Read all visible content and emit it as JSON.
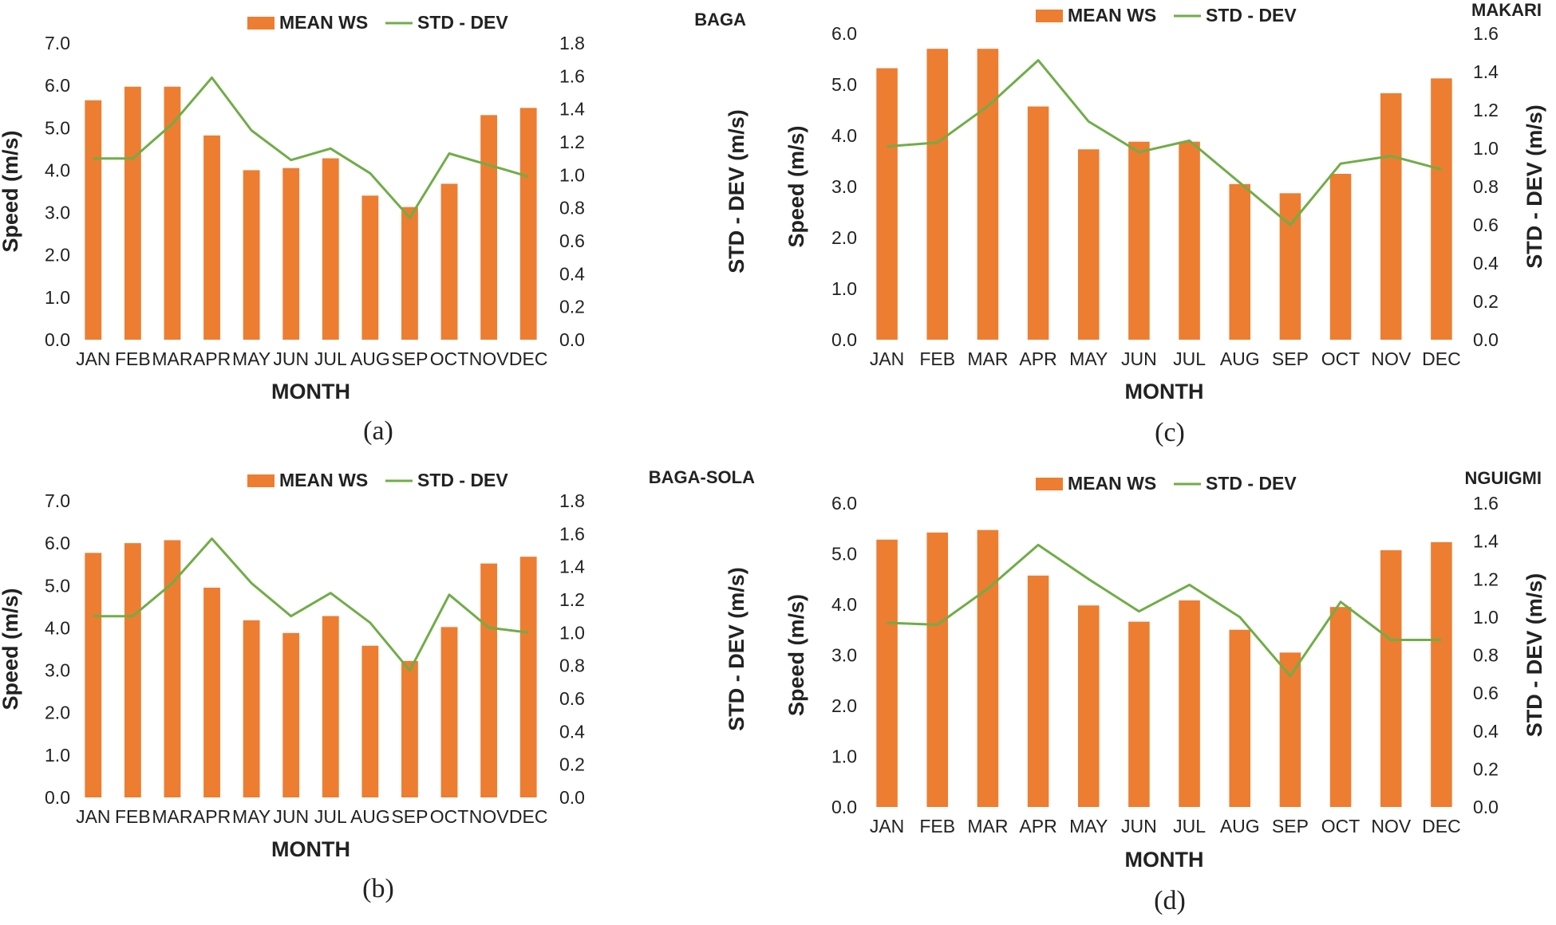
{
  "chart_data": [
    {
      "type": "bar+line",
      "panel": "(a)",
      "station": "BAGA",
      "categories": [
        "JAN",
        "FEB",
        "MAR",
        "APR",
        "MAY",
        "JUN",
        "JUL",
        "AUG",
        "SEP",
        "OCT",
        "NOV",
        "DEC"
      ],
      "series": [
        {
          "name": "MEAN WS",
          "kind": "bar",
          "axis": "left",
          "color": "#ED7D31",
          "values": [
            5.65,
            5.97,
            5.97,
            4.82,
            4.0,
            4.05,
            4.28,
            3.4,
            3.13,
            3.68,
            5.3,
            5.47
          ]
        },
        {
          "name": "STD - DEV",
          "kind": "line",
          "axis": "right",
          "color": "#70AD47",
          "values": [
            1.1,
            1.1,
            1.31,
            1.59,
            1.27,
            1.09,
            1.16,
            1.01,
            0.74,
            1.13,
            1.06,
            0.99
          ]
        }
      ],
      "xlabel": "MONTH",
      "ylabel": "Speed (m/s)",
      "y2label": "STD - DEV (m/s)",
      "ylim": [
        0,
        7.0
      ],
      "yticks": [
        "0.0",
        "1.0",
        "2.0",
        "3.0",
        "4.0",
        "5.0",
        "6.0",
        "7.0"
      ],
      "y2lim": [
        0,
        1.8
      ],
      "y2ticks": [
        "0.0",
        "0.2",
        "0.4",
        "0.6",
        "0.8",
        "1.0",
        "1.2",
        "1.4",
        "1.6",
        "1.8"
      ]
    },
    {
      "type": "bar+line",
      "panel": "(b)",
      "station": "BAGA-SOLA",
      "categories": [
        "JAN",
        "FEB",
        "MAR",
        "APR",
        "MAY",
        "JUN",
        "JUL",
        "AUG",
        "SEP",
        "OCT",
        "NOV",
        "DEC"
      ],
      "series": [
        {
          "name": "MEAN WS",
          "kind": "bar",
          "axis": "left",
          "color": "#ED7D31",
          "values": [
            5.77,
            6.0,
            6.07,
            4.95,
            4.18,
            3.88,
            4.28,
            3.58,
            3.22,
            4.02,
            5.52,
            5.68
          ]
        },
        {
          "name": "STD - DEV",
          "kind": "line",
          "axis": "right",
          "color": "#70AD47",
          "values": [
            1.1,
            1.1,
            1.3,
            1.57,
            1.3,
            1.1,
            1.24,
            1.06,
            0.77,
            1.23,
            1.03,
            1.0
          ]
        }
      ],
      "xlabel": "MONTH",
      "ylabel": "Speed (m/s)",
      "y2label": "STD - DEV (m/s)",
      "ylim": [
        0,
        7.0
      ],
      "yticks": [
        "0.0",
        "1.0",
        "2.0",
        "3.0",
        "4.0",
        "5.0",
        "6.0",
        "7.0"
      ],
      "y2lim": [
        0,
        1.8
      ],
      "y2ticks": [
        "0.0",
        "0.2",
        "0.4",
        "0.6",
        "0.8",
        "1.0",
        "1.2",
        "1.4",
        "1.6",
        "1.8"
      ]
    },
    {
      "type": "bar+line",
      "panel": "(c)",
      "station": "MAKARI",
      "categories": [
        "JAN",
        "FEB",
        "MAR",
        "APR",
        "MAY",
        "JUN",
        "JUL",
        "AUG",
        "SEP",
        "OCT",
        "NOV",
        "DEC"
      ],
      "series": [
        {
          "name": "MEAN WS",
          "kind": "bar",
          "axis": "left",
          "color": "#ED7D31",
          "values": [
            5.32,
            5.7,
            5.7,
            4.57,
            3.73,
            3.88,
            3.88,
            3.05,
            2.87,
            3.25,
            4.83,
            5.12
          ]
        },
        {
          "name": "STD - DEV",
          "kind": "line",
          "axis": "right",
          "color": "#70AD47",
          "values": [
            1.01,
            1.03,
            1.22,
            1.46,
            1.14,
            0.98,
            1.04,
            0.82,
            0.6,
            0.92,
            0.96,
            0.89
          ]
        }
      ],
      "xlabel": "MONTH",
      "ylabel": "Speed (m/s)",
      "y2label": "STD - DEV (m/s)",
      "ylim": [
        0,
        6.0
      ],
      "yticks": [
        "0.0",
        "1.0",
        "2.0",
        "3.0",
        "4.0",
        "5.0",
        "6.0"
      ],
      "y2lim": [
        0,
        1.6
      ],
      "y2ticks": [
        "0.0",
        "0.2",
        "0.4",
        "0.6",
        "0.8",
        "1.0",
        "1.2",
        "1.4",
        "1.6"
      ]
    },
    {
      "type": "bar+line",
      "panel": "(d)",
      "station": "NGUIGMI",
      "categories": [
        "JAN",
        "FEB",
        "MAR",
        "APR",
        "MAY",
        "JUN",
        "JUL",
        "AUG",
        "SEP",
        "OCT",
        "NOV",
        "DEC"
      ],
      "series": [
        {
          "name": "MEAN WS",
          "kind": "bar",
          "axis": "left",
          "color": "#ED7D31",
          "values": [
            5.28,
            5.42,
            5.47,
            4.57,
            3.98,
            3.66,
            4.08,
            3.5,
            3.05,
            3.95,
            5.07,
            5.23
          ]
        },
        {
          "name": "STD - DEV",
          "kind": "line",
          "axis": "right",
          "color": "#70AD47",
          "values": [
            0.97,
            0.96,
            1.15,
            1.38,
            1.2,
            1.03,
            1.17,
            1.0,
            0.69,
            1.08,
            0.88,
            0.88
          ]
        }
      ],
      "xlabel": "MONTH",
      "ylabel": "Speed (m/s)",
      "y2label": "STD - DEV (m/s)",
      "ylim": [
        0,
        6.0
      ],
      "yticks": [
        "0.0",
        "1.0",
        "2.0",
        "3.0",
        "4.0",
        "5.0",
        "6.0"
      ],
      "y2lim": [
        0,
        1.6
      ],
      "y2ticks": [
        "0.0",
        "0.2",
        "0.4",
        "0.6",
        "0.8",
        "1.0",
        "1.2",
        "1.4",
        "1.6"
      ]
    }
  ]
}
